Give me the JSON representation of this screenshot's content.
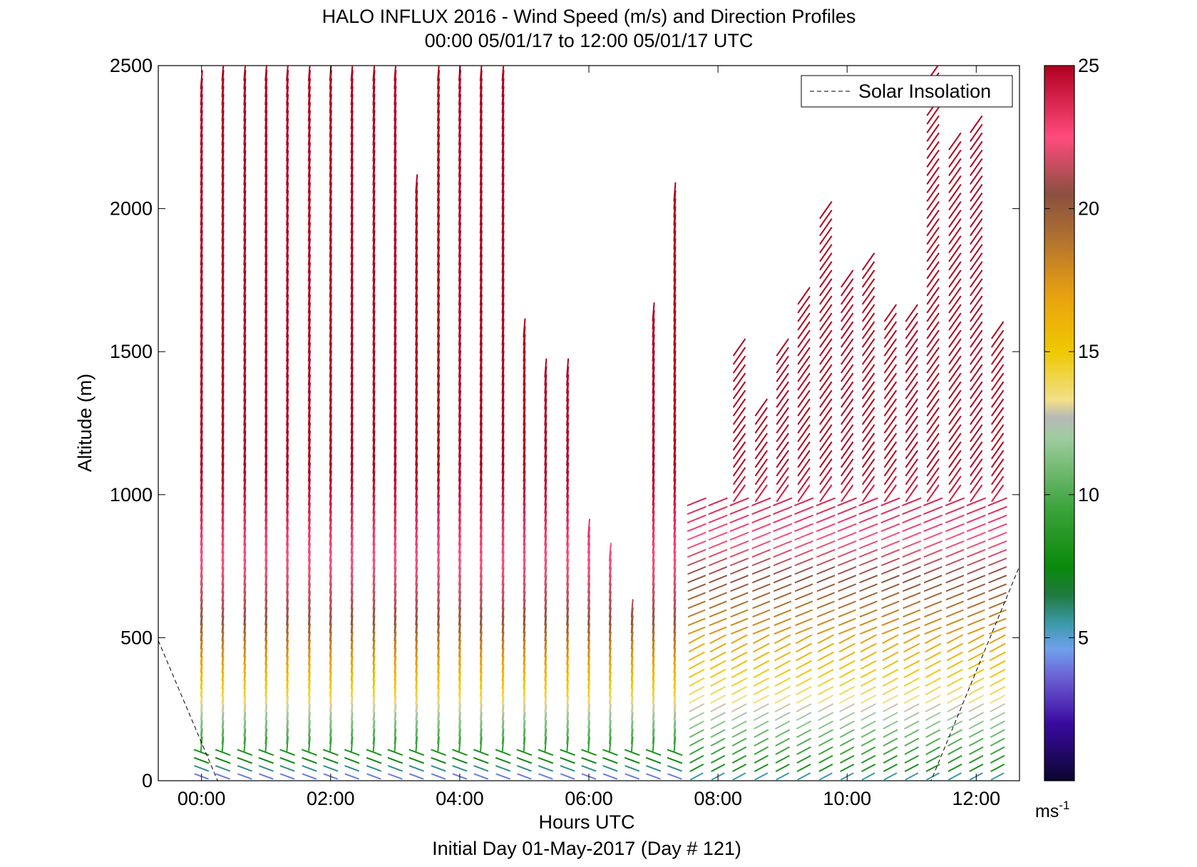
{
  "chart_data": {
    "type": "quiver",
    "title": "HALO INFLUX 2016 - Wind Speed (m/s) and Direction Profiles",
    "subtitle": "00:00 05/01/17 to 12:00 05/01/17  UTC",
    "xlabel": "Hours UTC",
    "xlabel2": "Initial Day 01-May-2017 (Day # 121)",
    "ylabel": "Altitude (m)",
    "xlim": [
      -0.67,
      12.67
    ],
    "ylim": [
      0,
      2500
    ],
    "x_ticks": [
      {
        "value": 0,
        "label": "00:00"
      },
      {
        "value": 2,
        "label": "02:00"
      },
      {
        "value": 4,
        "label": "04:00"
      },
      {
        "value": 6,
        "label": "06:00"
      },
      {
        "value": 8,
        "label": "08:00"
      },
      {
        "value": 10,
        "label": "10:00"
      },
      {
        "value": 12,
        "label": "12:00"
      }
    ],
    "y_ticks": [
      {
        "value": 0,
        "label": "0"
      },
      {
        "value": 500,
        "label": "500"
      },
      {
        "value": 1000,
        "label": "1000"
      },
      {
        "value": 1500,
        "label": "1500"
      },
      {
        "value": 2000,
        "label": "2000"
      },
      {
        "value": 2500,
        "label": "2500"
      }
    ],
    "legend": {
      "label": "Solar Insolation",
      "position": "top-right",
      "style": "dashed"
    },
    "colorbar": {
      "range": [
        0,
        25
      ],
      "ticks": [
        {
          "value": 5,
          "label": "5"
        },
        {
          "value": 10,
          "label": "10"
        },
        {
          "value": 15,
          "label": "15"
        },
        {
          "value": 20,
          "label": "20"
        },
        {
          "value": 25,
          "label": "25"
        }
      ],
      "unit": "ms",
      "unit_exp": "-1",
      "stops": [
        {
          "v": 0,
          "color": "#0b0630"
        },
        {
          "v": 2,
          "color": "#3a0aa0"
        },
        {
          "v": 3.5,
          "color": "#6a5ad0"
        },
        {
          "v": 4.6,
          "color": "#6fa0ee"
        },
        {
          "v": 5.5,
          "color": "#3a9aa8"
        },
        {
          "v": 6.5,
          "color": "#1f7a40"
        },
        {
          "v": 7.5,
          "color": "#0a8a0a"
        },
        {
          "v": 9.5,
          "color": "#3aa33a"
        },
        {
          "v": 12,
          "color": "#9fcc9f"
        },
        {
          "v": 12.7,
          "color": "#b8b8b8"
        },
        {
          "v": 13.3,
          "color": "#f0e08a"
        },
        {
          "v": 15,
          "color": "#f0c800"
        },
        {
          "v": 17,
          "color": "#e8a010"
        },
        {
          "v": 19,
          "color": "#b07030"
        },
        {
          "v": 20.5,
          "color": "#8a5040"
        },
        {
          "v": 22.5,
          "color": "#ff4b7d"
        },
        {
          "v": 25,
          "color": "#b00020"
        }
      ]
    },
    "solar_insolation": {
      "x": [
        -0.67,
        0.25,
        11.3,
        12.67
      ],
      "y": [
        490,
        0,
        0,
        750
      ]
    },
    "profiles": {
      "note_fields": [
        "x hour",
        "max altitude m"
      ],
      "columns": [
        [
          0.0,
          2460
        ],
        [
          0.33,
          2500
        ],
        [
          0.67,
          2500
        ],
        [
          1.0,
          2500
        ],
        [
          1.33,
          2500
        ],
        [
          1.67,
          2500
        ],
        [
          2.0,
          2500
        ],
        [
          2.33,
          2500
        ],
        [
          2.67,
          2500
        ],
        [
          3.0,
          2500
        ],
        [
          3.33,
          2100
        ],
        [
          3.67,
          2500
        ],
        [
          4.0,
          2500
        ],
        [
          4.33,
          2500
        ],
        [
          4.67,
          2500
        ],
        [
          5.0,
          1600
        ],
        [
          5.33,
          1450
        ],
        [
          5.67,
          1450
        ],
        [
          6.0,
          900
        ],
        [
          6.33,
          820
        ],
        [
          6.67,
          620
        ],
        [
          7.0,
          1660
        ],
        [
          7.33,
          2080
        ],
        [
          7.67,
          1000
        ],
        [
          8.0,
          1000
        ],
        [
          8.33,
          1520
        ],
        [
          8.67,
          1330
        ],
        [
          9.0,
          1520
        ],
        [
          9.33,
          1700
        ],
        [
          9.67,
          2000
        ],
        [
          10.0,
          1760
        ],
        [
          10.33,
          1820
        ],
        [
          10.67,
          1660
        ],
        [
          11.0,
          1640
        ],
        [
          11.33,
          2480
        ],
        [
          11.67,
          2260
        ],
        [
          12.0,
          2320
        ],
        [
          12.33,
          1580
        ]
      ]
    }
  }
}
